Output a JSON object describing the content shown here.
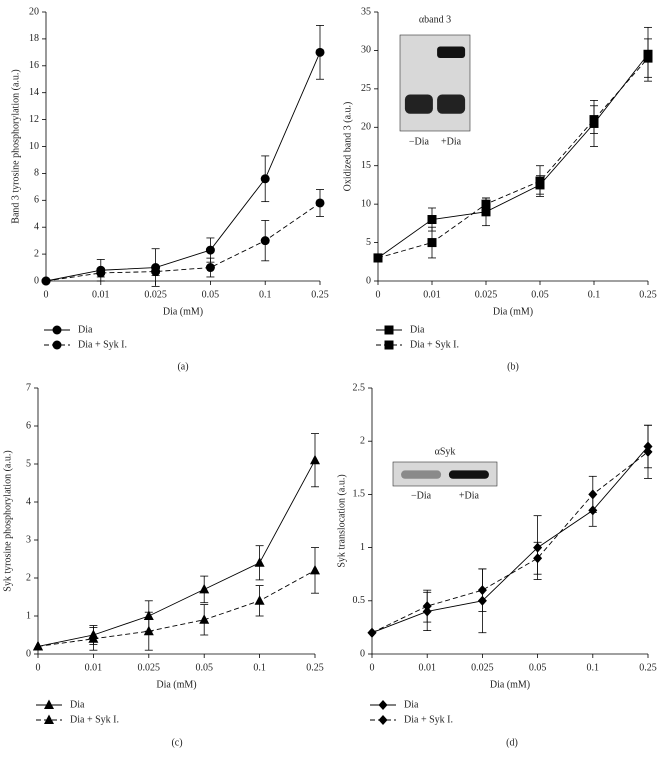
{
  "chart_data": [
    {
      "type": "line",
      "label": "(a)",
      "xlabel": "Dia (mM)",
      "ylabel": "Band 3 tyrosine phosphorylation (a.u.)",
      "categories": [
        "0",
        "0.01",
        "0.025",
        "0.05",
        "0.1",
        "0.25"
      ],
      "marker": "circle",
      "ylim": [
        0,
        20
      ],
      "yticks": [
        0,
        2,
        4,
        6,
        8,
        10,
        12,
        14,
        16,
        18,
        20
      ],
      "series": [
        {
          "name": "Dia",
          "color": "#000000",
          "line_style": "solid",
          "values": [
            0,
            0.8,
            1.0,
            2.3,
            7.6,
            17.0
          ],
          "errors": [
            null,
            0.8,
            1.4,
            0.9,
            1.7,
            2.0
          ]
        },
        {
          "name": "Dia + Syk I.",
          "color": "#000000",
          "line_style": "dashed",
          "values": [
            0,
            0.6,
            0.7,
            1.0,
            3.0,
            5.8
          ],
          "errors": [
            null,
            0.3,
            0.3,
            0.7,
            1.5,
            1.0
          ]
        }
      ]
    },
    {
      "type": "line",
      "label": "(b)",
      "xlabel": "Dia (mM)",
      "ylabel": "Oxidized band 3 (a.u.)",
      "categories": [
        "0",
        "0.01",
        "0.025",
        "0.05",
        "0.1",
        "0.25"
      ],
      "marker": "square",
      "ylim": [
        0,
        35
      ],
      "yticks": [
        0,
        5,
        10,
        15,
        20,
        25,
        30,
        35
      ],
      "inset": {
        "title": "αband 3",
        "labels": [
          "−Dia",
          "+Dia"
        ]
      },
      "series": [
        {
          "name": "Dia",
          "color": "#000000",
          "line_style": "solid",
          "values": [
            3,
            8,
            9,
            12.5,
            20.5,
            29.5
          ],
          "errors": [
            null,
            1.5,
            1.8,
            1.2,
            3.0,
            3.5
          ]
        },
        {
          "name": "Dia + Syk I.",
          "color": "#000000",
          "line_style": "dashed",
          "values": [
            3,
            5,
            10,
            13,
            21,
            29
          ],
          "errors": [
            null,
            2.0,
            0.8,
            2.0,
            1.8,
            2.5
          ]
        }
      ]
    },
    {
      "type": "line",
      "label": "(c)",
      "xlabel": "Dia (mM)",
      "ylabel": "Syk tyrosine phosphorylation (a.u.)",
      "categories": [
        "0",
        "0.01",
        "0.025",
        "0.05",
        "0.1",
        "0.25"
      ],
      "marker": "triangle",
      "ylim": [
        0,
        7
      ],
      "yticks": [
        0,
        1,
        2,
        3,
        4,
        5,
        6,
        7
      ],
      "series": [
        {
          "name": "Dia",
          "color": "#000000",
          "line_style": "solid",
          "values": [
            0.2,
            0.5,
            1.0,
            1.7,
            2.4,
            5.1
          ],
          "errors": [
            null,
            0.25,
            0.4,
            0.35,
            0.45,
            0.7
          ]
        },
        {
          "name": "Dia + Syk I.",
          "color": "#000000",
          "line_style": "dashed",
          "values": [
            0.2,
            0.4,
            0.6,
            0.9,
            1.4,
            2.2
          ],
          "errors": [
            null,
            0.3,
            0.5,
            0.4,
            0.4,
            0.6
          ]
        }
      ]
    },
    {
      "type": "line",
      "label": "(d)",
      "xlabel": "Dia (mM)",
      "ylabel": "Syk translocation (a.u.)",
      "categories": [
        "0",
        "0.01",
        "0.025",
        "0.05",
        "0.1",
        "0.25"
      ],
      "marker": "diamond",
      "ylim": [
        0,
        2.5
      ],
      "yticks": [
        0,
        0.5,
        1,
        1.5,
        2,
        2.5
      ],
      "inset": {
        "title": "αSyk",
        "labels": [
          "−Dia",
          "+Dia"
        ]
      },
      "series": [
        {
          "name": "Dia",
          "color": "#000000",
          "line_style": "solid",
          "values": [
            0.2,
            0.4,
            0.5,
            1.0,
            1.35,
            1.95
          ],
          "errors": [
            null,
            0.18,
            0.3,
            0.3,
            0.15,
            0.2
          ]
        },
        {
          "name": "Dia + Syk I.",
          "color": "#000000",
          "line_style": "dashed",
          "values": [
            0.2,
            0.45,
            0.6,
            0.9,
            1.5,
            1.9
          ],
          "errors": [
            null,
            0.15,
            0.2,
            0.15,
            0.17,
            0.25
          ]
        }
      ]
    }
  ]
}
